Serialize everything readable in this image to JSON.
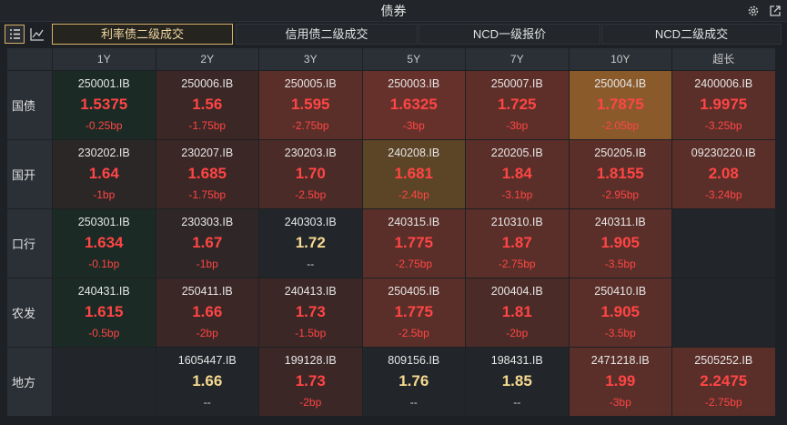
{
  "title": "债券",
  "tabs": [
    {
      "label": "利率债二级成交",
      "active": true
    },
    {
      "label": "信用债二级成交",
      "active": false
    },
    {
      "label": "NCD一级报价",
      "active": false
    },
    {
      "label": "NCD二级成交",
      "active": false
    }
  ],
  "columns": [
    "1Y",
    "2Y",
    "3Y",
    "5Y",
    "7Y",
    "10Y",
    "超长"
  ],
  "rows": [
    {
      "label": "国债",
      "cells": [
        {
          "code": "250001.IB",
          "price": "1.5375",
          "change": "-0.25bp",
          "bg": "#1b2a24",
          "color": "#ff4545"
        },
        {
          "code": "250006.IB",
          "price": "1.56",
          "change": "-1.75bp",
          "bg": "#3b2725",
          "color": "#ff4545"
        },
        {
          "code": "250005.IB",
          "price": "1.595",
          "change": "-2.75bp",
          "bg": "#5a2f29",
          "color": "#ff4545"
        },
        {
          "code": "250003.IB",
          "price": "1.6325",
          "change": "-3bp",
          "bg": "#66312b",
          "color": "#ff4545"
        },
        {
          "code": "250007.IB",
          "price": "1.725",
          "change": "-3bp",
          "bg": "#5e2f29",
          "color": "#ff4545"
        },
        {
          "code": "250004.IB",
          "price": "1.7875",
          "change": "-2.05bp",
          "bg": "#8a5a2b",
          "color": "#ff4545"
        },
        {
          "code": "2400006.IB",
          "price": "1.9975",
          "change": "-3.25bp",
          "bg": "#5a2f29",
          "color": "#ff4545"
        }
      ]
    },
    {
      "label": "国开",
      "cells": [
        {
          "code": "230202.IB",
          "price": "1.64",
          "change": "-1bp",
          "bg": "#2b2727",
          "color": "#ff4545"
        },
        {
          "code": "230207.IB",
          "price": "1.685",
          "change": "-1.75bp",
          "bg": "#3b2725",
          "color": "#ff4545"
        },
        {
          "code": "230203.IB",
          "price": "1.70",
          "change": "-2.5bp",
          "bg": "#4b2b27",
          "color": "#ff4545"
        },
        {
          "code": "240208.IB",
          "price": "1.681",
          "change": "-2.4bp",
          "bg": "#5c4426",
          "color": "#ff4545"
        },
        {
          "code": "220205.IB",
          "price": "1.84",
          "change": "-3.1bp",
          "bg": "#5a2f29",
          "color": "#ff4545"
        },
        {
          "code": "250205.IB",
          "price": "1.8155",
          "change": "-2.95bp",
          "bg": "#5a2f29",
          "color": "#ff4545"
        },
        {
          "code": "09230220.IB",
          "price": "2.08",
          "change": "-3.24bp",
          "bg": "#5a2f29",
          "color": "#ff4545"
        }
      ]
    },
    {
      "label": "口行",
      "cells": [
        {
          "code": "250301.IB",
          "price": "1.634",
          "change": "-0.1bp",
          "bg": "#1b2a24",
          "color": "#ff4545"
        },
        {
          "code": "230303.IB",
          "price": "1.67",
          "change": "-1bp",
          "bg": "#2f2727",
          "color": "#ff4545"
        },
        {
          "code": "240303.IB",
          "price": "1.72",
          "change": "--",
          "bg": "#22262a",
          "color": "#f5d98f"
        },
        {
          "code": "240315.IB",
          "price": "1.775",
          "change": "-2.75bp",
          "bg": "#5a2f29",
          "color": "#ff4545"
        },
        {
          "code": "210310.IB",
          "price": "1.87",
          "change": "-2.75bp",
          "bg": "#5a2f29",
          "color": "#ff4545"
        },
        {
          "code": "240311.IB",
          "price": "1.905",
          "change": "-3.5bp",
          "bg": "#5a2f29",
          "color": "#ff4545"
        },
        null
      ]
    },
    {
      "label": "农发",
      "cells": [
        {
          "code": "240431.IB",
          "price": "1.615",
          "change": "-0.5bp",
          "bg": "#1b2a24",
          "color": "#ff4545"
        },
        {
          "code": "250411.IB",
          "price": "1.66",
          "change": "-2bp",
          "bg": "#3b2725",
          "color": "#ff4545"
        },
        {
          "code": "240413.IB",
          "price": "1.73",
          "change": "-1.5bp",
          "bg": "#3b2725",
          "color": "#ff4545"
        },
        {
          "code": "250405.IB",
          "price": "1.775",
          "change": "-2.5bp",
          "bg": "#5a2f29",
          "color": "#ff4545"
        },
        {
          "code": "200404.IB",
          "price": "1.81",
          "change": "-2bp",
          "bg": "#4b2b27",
          "color": "#ff4545"
        },
        {
          "code": "250410.IB",
          "price": "1.905",
          "change": "-3.5bp",
          "bg": "#5a2f29",
          "color": "#ff4545"
        },
        null
      ]
    },
    {
      "label": "地方",
      "cells": [
        null,
        {
          "code": "1605447.IB",
          "price": "1.66",
          "change": "--",
          "bg": "#22262a",
          "color": "#f5d98f"
        },
        {
          "code": "199128.IB",
          "price": "1.73",
          "change": "-2bp",
          "bg": "#3b2725",
          "color": "#ff4545"
        },
        {
          "code": "809156.IB",
          "price": "1.76",
          "change": "--",
          "bg": "#22262a",
          "color": "#f5d98f"
        },
        {
          "code": "198431.IB",
          "price": "1.85",
          "change": "--",
          "bg": "#22262a",
          "color": "#f5d98f"
        },
        {
          "code": "2471218.IB",
          "price": "1.99",
          "change": "-3bp",
          "bg": "#5a2f29",
          "color": "#ff4545"
        },
        {
          "code": "2505252.IB",
          "price": "2.2475",
          "change": "-2.75bp",
          "bg": "#5a2f29",
          "color": "#ff4545"
        }
      ]
    }
  ]
}
